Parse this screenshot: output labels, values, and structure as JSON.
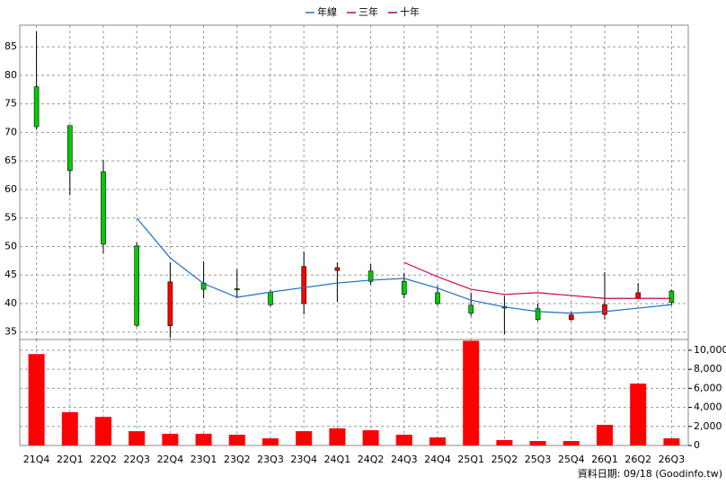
{
  "chart_data": {
    "type": "candlestick",
    "categories": [
      "21Q4",
      "22Q1",
      "22Q2",
      "22Q3",
      "22Q4",
      "23Q1",
      "23Q2",
      "23Q3",
      "23Q4",
      "24Q1",
      "24Q2",
      "24Q3",
      "24Q4",
      "25Q1",
      "25Q2",
      "25Q3",
      "25Q4",
      "26Q1",
      "26Q2",
      "26Q3"
    ],
    "open": [
      78,
      71.2,
      63.1,
      50.1,
      36.1,
      43.6,
      42.6,
      42,
      40,
      45.8,
      45.7,
      43.9,
      41.9,
      39.7,
      39.5,
      39.1,
      37.2,
      38.1,
      40.9,
      42.2
    ],
    "high": [
      87.7,
      71.2,
      65.2,
      50.7,
      47.2,
      47.4,
      46,
      42.4,
      49.1,
      47.2,
      46.9,
      45.4,
      43.1,
      41.9,
      41.3,
      40,
      38.6,
      45.5,
      43.6,
      42.4
    ],
    "low": [
      70.5,
      59,
      48.8,
      35.9,
      34,
      40.9,
      40.9,
      39.5,
      38.1,
      40.3,
      43.3,
      40.9,
      39.7,
      37.8,
      34.6,
      36.9,
      36.9,
      37.2,
      40.8,
      39.7
    ],
    "close": [
      71,
      63.3,
      50.4,
      36.2,
      43.8,
      42.5,
      42.4,
      39.8,
      46.5,
      46.3,
      43.9,
      41.6,
      40,
      38.3,
      39.2,
      37.2,
      38,
      39.8,
      41.9,
      40.2
    ],
    "up_color": "#ff0000",
    "down_color": "#00cc00",
    "series": [
      {
        "name": "年線",
        "color": "#1e6fc0",
        "values": [
          null,
          null,
          null,
          55,
          48,
          43.5,
          41.1,
          42,
          42.8,
          43.6,
          44.1,
          44.4,
          42.7,
          40.6,
          39.4,
          38.6,
          38.3,
          38.6,
          39.2,
          39.8
        ]
      },
      {
        "name": "三年",
        "color": "#cc0044",
        "values": [
          null,
          null,
          null,
          null,
          null,
          null,
          null,
          null,
          null,
          null,
          null,
          47.2,
          44.7,
          42.5,
          41.6,
          41.9,
          41.4,
          40.9,
          40.9,
          40.9
        ]
      },
      {
        "name": "十年",
        "color": "#a0005a",
        "values": [
          null,
          null,
          null,
          null,
          null,
          null,
          null,
          null,
          null,
          null,
          null,
          null,
          null,
          null,
          null,
          null,
          null,
          null,
          null,
          null
        ]
      }
    ],
    "ylim": [
      33.7,
      88.8
    ],
    "yticks": [
      35,
      40,
      45,
      50,
      55,
      60,
      65,
      70,
      75,
      80,
      85
    ],
    "grid": true,
    "volume": {
      "color": "#ff0000",
      "values": [
        9600,
        3500,
        3000,
        1500,
        1230,
        1230,
        1130,
        750,
        1500,
        1800,
        1600,
        1130,
        850,
        11000,
        570,
        470,
        470,
        2170,
        6500,
        750
      ],
      "ylim": [
        0,
        11130
      ],
      "yticks": [
        0,
        {
          "value": 2000,
          "label": "2,000"
        },
        {
          "value": 4000,
          "label": "4,000"
        },
        {
          "value": 6000,
          "label": "6,000"
        },
        {
          "value": 8000,
          "label": "8,000"
        },
        {
          "value": 10000,
          "label": "10,000"
        }
      ]
    },
    "note": "資料日期: 09/18  (Goodinfo.tw)"
  }
}
